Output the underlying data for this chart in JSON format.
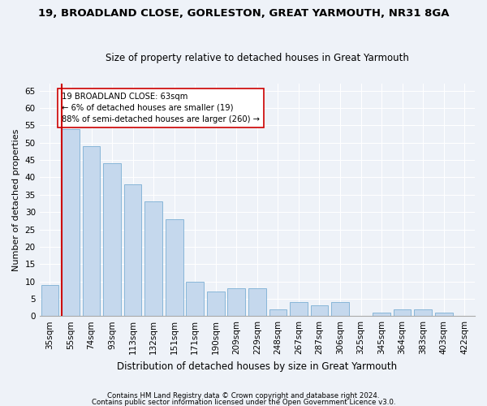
{
  "title": "19, BROADLAND CLOSE, GORLESTON, GREAT YARMOUTH, NR31 8GA",
  "subtitle": "Size of property relative to detached houses in Great Yarmouth",
  "xlabel": "Distribution of detached houses by size in Great Yarmouth",
  "ylabel": "Number of detached properties",
  "categories": [
    "35sqm",
    "55sqm",
    "74sqm",
    "93sqm",
    "113sqm",
    "132sqm",
    "151sqm",
    "171sqm",
    "190sqm",
    "209sqm",
    "229sqm",
    "248sqm",
    "267sqm",
    "287sqm",
    "306sqm",
    "325sqm",
    "345sqm",
    "364sqm",
    "383sqm",
    "403sqm",
    "422sqm"
  ],
  "values": [
    9,
    54,
    49,
    44,
    38,
    33,
    28,
    10,
    7,
    8,
    8,
    2,
    4,
    3,
    4,
    0,
    1,
    2,
    2,
    1,
    0
  ],
  "bar_color": "#c5d8ed",
  "bar_edge_color": "#7bafd4",
  "vline_color": "#cc0000",
  "vline_x": 0.575,
  "annotation_text": "19 BROADLAND CLOSE: 63sqm\n← 6% of detached houses are smaller (19)\n88% of semi-detached houses are larger (260) →",
  "annotation_box_color": "#ffffff",
  "annotation_box_edge": "#cc0000",
  "ylim": [
    0,
    67
  ],
  "yticks": [
    0,
    5,
    10,
    15,
    20,
    25,
    30,
    35,
    40,
    45,
    50,
    55,
    60,
    65
  ],
  "title_fontsize": 9.5,
  "subtitle_fontsize": 8.5,
  "axis_label_fontsize": 8,
  "tick_fontsize": 7.5,
  "footer_line1": "Contains HM Land Registry data © Crown copyright and database right 2024.",
  "footer_line2": "Contains public sector information licensed under the Open Government Licence v3.0.",
  "background_color": "#eef2f8",
  "plot_background_color": "#eef2f8"
}
